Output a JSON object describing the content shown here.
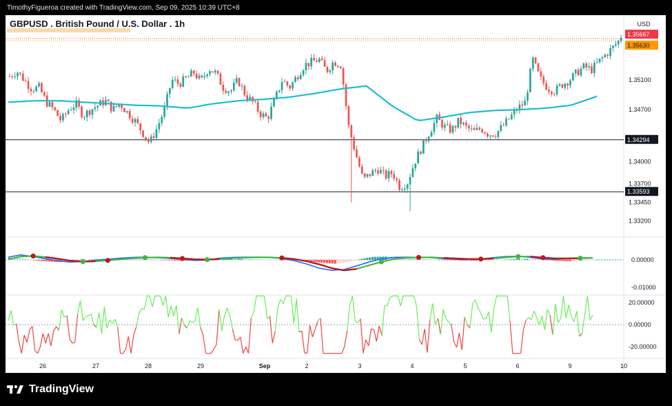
{
  "attribution": "TimothyFigueroa created with TradingView.com, Sep 09, 2025 10:39 UTC+8",
  "symbol_title": "GBPUSD . British Pound / U.S. Dollar . 1h",
  "brand": "TradingView",
  "currency": "USD",
  "colors": {
    "up": "#26a69a",
    "down": "#ef5350",
    "ma": "#1cbcd4",
    "macd_line": "#2962ff",
    "signal_line": "#43b443",
    "signal_down": "#b71c1c",
    "osc_up": "#66ee55",
    "osc_down": "#ee4444",
    "price_tag_red": "#f23645",
    "price_tag_orange": "#ff9800"
  },
  "chart_data": [
    {
      "type": "candlestick",
      "title": "GBPUSD . British Pound / U.S. Dollar . 1h",
      "ylabel": "USD",
      "ylim": [
        1.33,
        1.359
      ],
      "x_tick_labels": [
        "26",
        "27",
        "28",
        "29",
        "Sep",
        "2",
        "3",
        "4",
        "5",
        "6",
        "9",
        "10"
      ],
      "y_tick_labels": [
        "1.35100",
        "1.34700",
        "1.34000",
        "1.33700",
        "1.33450",
        "1.33200"
      ],
      "price_labels": [
        {
          "value": "1.35667",
          "style": "red"
        },
        {
          "value": "1.35630",
          "style": "orange"
        },
        {
          "value": "1.34294",
          "style": "black"
        },
        {
          "value": "1.33593",
          "style": "black"
        }
      ],
      "horizontal_lines": [
        1.34294,
        1.33593
      ],
      "price_line": 1.3563,
      "close_path": [
        1.3515,
        1.3522,
        1.351,
        1.3498,
        1.35,
        1.348,
        1.347,
        1.3455,
        1.347,
        1.3478,
        1.3462,
        1.347,
        1.3476,
        1.3482,
        1.347,
        1.3478,
        1.3466,
        1.3455,
        1.344,
        1.3425,
        1.3445,
        1.347,
        1.351,
        1.3505,
        1.3512,
        1.352,
        1.3508,
        1.3526,
        1.3519,
        1.35,
        1.3495,
        1.351,
        1.349,
        1.348,
        1.3465,
        1.3458,
        1.3483,
        1.351,
        1.35,
        1.3515,
        1.353,
        1.3534,
        1.3538,
        1.3522,
        1.3535,
        1.353,
        1.3448,
        1.341,
        1.3375,
        1.3384,
        1.339,
        1.338,
        1.3385,
        1.3365,
        1.3372,
        1.34,
        1.342,
        1.344,
        1.3458,
        1.3447,
        1.3442,
        1.3455,
        1.3446,
        1.344,
        1.3445,
        1.3437,
        1.3438,
        1.3448,
        1.346,
        1.3472,
        1.348,
        1.3538,
        1.3512,
        1.35,
        1.3495,
        1.3504,
        1.351,
        1.352,
        1.3528,
        1.3524,
        1.3535,
        1.3545,
        1.3555,
        1.3566
      ],
      "moving_average": [
        1.348,
        1.3482,
        1.3482,
        1.348,
        1.3478,
        1.3476,
        1.3475,
        1.3472,
        1.3478,
        1.3482,
        1.3484,
        1.3487,
        1.3492,
        1.3498,
        1.3502,
        1.3475,
        1.3455,
        1.346,
        1.3466,
        1.3469,
        1.347,
        1.3472,
        1.3476,
        1.3488
      ],
      "macd": {
        "y_tick_labels": [
          "0.00000",
          "-0.01000"
        ],
        "signal_points": [
          "down",
          "up",
          "down",
          "up",
          "down",
          "up",
          "down",
          "up",
          "down",
          "down",
          "up",
          "down",
          "up"
        ]
      },
      "oscillator": {
        "y_tick_labels": [
          "20.00000",
          "0.00000",
          "-20.00000"
        ]
      }
    }
  ]
}
